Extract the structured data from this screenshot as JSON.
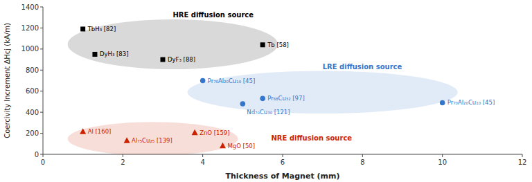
{
  "chart_data": {
    "type": "scatter",
    "x_label": "Thickness of Magnet (mm)",
    "y_label": "Coercivity Increment ΔHcj (kA/m)",
    "xlim": [
      0,
      12
    ],
    "ylim": [
      0,
      1400
    ],
    "xticks": [
      0,
      2,
      4,
      6,
      8,
      10,
      12
    ],
    "yticks": [
      0,
      200,
      400,
      600,
      800,
      1000,
      1200,
      1400
    ],
    "grid": false,
    "series": [
      {
        "name": "HRE diffusion source",
        "color": "black",
        "marker": "square",
        "x": [
          1.0,
          1.3,
          3.0,
          5.5
        ],
        "values": [
          1190,
          950,
          900,
          1040
        ],
        "labels": [
          "TbH₃ [82]",
          "DyH₃ [83]",
          "DyF₃ [88]",
          "Tb [58]"
        ]
      },
      {
        "name": "LRE diffusion source",
        "color": "#3377cc",
        "marker": "circle",
        "x": [
          4.0,
          5.0,
          5.5,
          10.0
        ],
        "values": [
          700,
          480,
          530,
          490
        ],
        "labels": [
          "Pr₇₀Al₂₀Cu₁₀ [45]",
          "Nd₇₀Cu₃₀ [121]",
          "Pr₆₈Cu₃₂ [97]",
          "Pr₇₀Al₂₀Cu₁₀ [45]"
        ]
      },
      {
        "name": "NRE diffusion source",
        "color": "#cc2200",
        "marker": "triangle",
        "x": [
          1.0,
          2.1,
          3.8,
          4.5
        ],
        "values": [
          215,
          130,
          205,
          80
        ],
        "labels": [
          "Al [160]",
          "Al₇₅Cu₂₅ [139]",
          "ZnO [159]",
          "MgO [50]"
        ]
      }
    ]
  }
}
